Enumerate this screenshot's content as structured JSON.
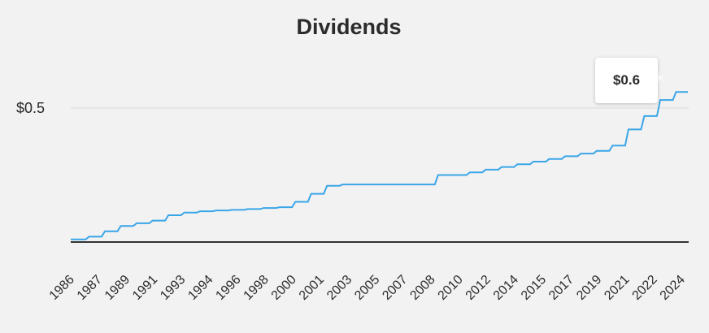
{
  "chart_data": {
    "type": "line",
    "title": "Dividends",
    "color": "#3aa6e8",
    "xlabel": "",
    "ylabel": "",
    "y_tick_labels": [
      {
        "value": 0.5,
        "label": "$0.5"
      }
    ],
    "x_tick_labels": [
      "1986",
      "1987",
      "1989",
      "1991",
      "1993",
      "1994",
      "1996",
      "1998",
      "2000",
      "2001",
      "2003",
      "2005",
      "2007",
      "2008",
      "2010",
      "2012",
      "2014",
      "2015",
      "2017",
      "2019",
      "2021",
      "2022",
      "2024"
    ],
    "tooltip": "$0.6",
    "grid": true,
    "x": [
      "1986",
      "1987",
      "1988",
      "1989",
      "1990",
      "1991",
      "1992",
      "1993",
      "1994",
      "1995",
      "1996",
      "1997",
      "1998",
      "1999",
      "2000",
      "2001",
      "2002",
      "2003",
      "2004",
      "2005",
      "2006",
      "2007",
      "2008",
      "2009",
      "2010",
      "2011",
      "2012",
      "2013",
      "2014",
      "2015",
      "2016",
      "2017",
      "2018",
      "2019",
      "2020",
      "2021",
      "2022",
      "2023",
      "2024"
    ],
    "series": [
      {
        "values": [
          0.01,
          0.02,
          0.04,
          0.06,
          0.07,
          0.08,
          0.1,
          0.11,
          0.115,
          0.118,
          0.12,
          0.123,
          0.127,
          0.13,
          0.15,
          0.18,
          0.21,
          0.215,
          0.215,
          0.215,
          0.215,
          0.215,
          0.215,
          0.25,
          0.25,
          0.26,
          0.27,
          0.28,
          0.29,
          0.3,
          0.31,
          0.32,
          0.33,
          0.34,
          0.36,
          0.42,
          0.47,
          0.53,
          0.56
        ]
      }
    ]
  }
}
